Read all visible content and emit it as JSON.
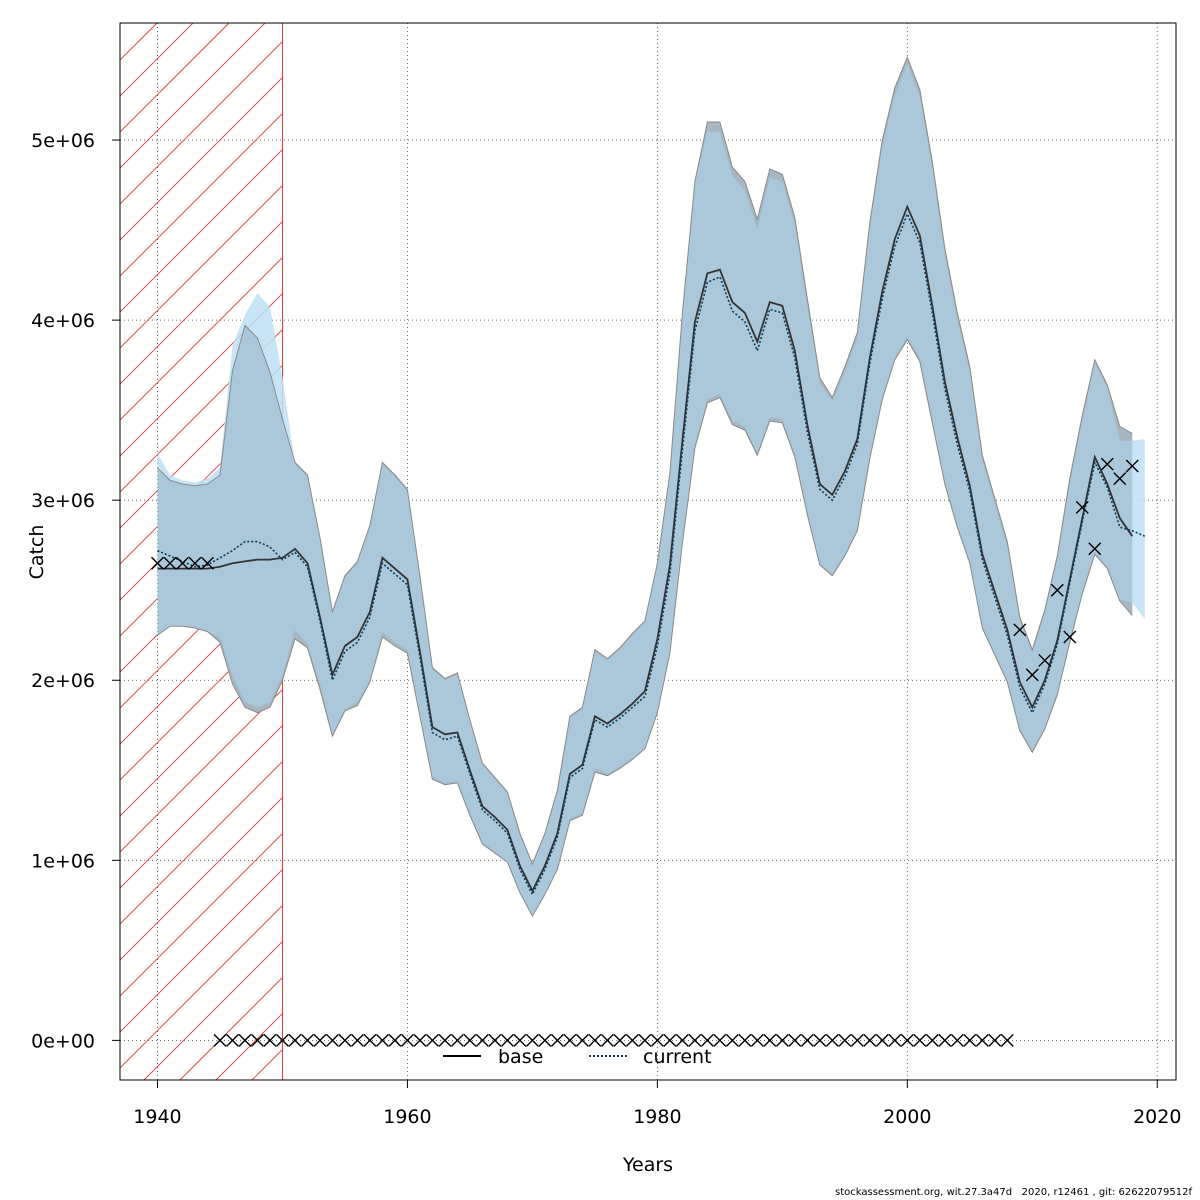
{
  "chart_data": {
    "type": "line",
    "xlabel": "Years",
    "ylabel": "Catch",
    "xlim": [
      1937,
      2021.5
    ],
    "ylim": [
      -220000,
      5650000
    ],
    "x_ticks": [
      1940,
      1960,
      1980,
      2000,
      2020
    ],
    "x_tick_labels": [
      "1940",
      "1960",
      "1980",
      "2000",
      "2020"
    ],
    "y_ticks": [
      0,
      1000000,
      2000000,
      3000000,
      4000000,
      5000000
    ],
    "y_tick_labels": [
      "0e+00",
      "1e+06",
      "2e+06",
      "3e+06",
      "4e+06",
      "5e+06"
    ],
    "grid": true,
    "legend_position": "bottom-center",
    "shaded_region": {
      "x_from": 1937,
      "x_to": 1950,
      "color": "#e53935",
      "pattern": "hatched"
    },
    "colors": {
      "base_band": "#b3b3b3",
      "current_band": "#bde0f5",
      "base_line": "#000000",
      "current_line": "#0b3d5c",
      "observed": "#000000"
    },
    "series": [
      {
        "name": "base",
        "style": "solid",
        "x": [
          1940,
          1941,
          1942,
          1943,
          1944,
          1945,
          1946,
          1947,
          1948,
          1949,
          1950,
          1951,
          1952,
          1953,
          1954,
          1955,
          1956,
          1957,
          1958,
          1959,
          1960,
          1961,
          1962,
          1963,
          1964,
          1965,
          1966,
          1967,
          1968,
          1969,
          1970,
          1971,
          1972,
          1973,
          1974,
          1975,
          1976,
          1977,
          1978,
          1979,
          1980,
          1981,
          1982,
          1983,
          1984,
          1985,
          1986,
          1987,
          1988,
          1989,
          1990,
          1991,
          1992,
          1993,
          1994,
          1995,
          1996,
          1997,
          1998,
          1999,
          2000,
          2001,
          2002,
          2003,
          2004,
          2005,
          2006,
          2007,
          2008,
          2009,
          2010,
          2011,
          2012,
          2013,
          2014,
          2015,
          2016,
          2017,
          2018
        ],
        "values": [
          2620000,
          2620000,
          2620000,
          2620000,
          2620000,
          2630000,
          2650000,
          2660000,
          2670000,
          2670000,
          2680000,
          2730000,
          2650000,
          2350000,
          2030000,
          2190000,
          2240000,
          2380000,
          2680000,
          2620000,
          2560000,
          2160000,
          1740000,
          1700000,
          1710000,
          1500000,
          1300000,
          1240000,
          1170000,
          970000,
          830000,
          970000,
          1150000,
          1480000,
          1530000,
          1800000,
          1760000,
          1810000,
          1870000,
          1940000,
          2230000,
          2640000,
          3330000,
          3990000,
          4260000,
          4280000,
          4100000,
          4040000,
          3880000,
          4100000,
          4080000,
          3830000,
          3420000,
          3090000,
          3030000,
          3160000,
          3340000,
          3790000,
          4160000,
          4450000,
          4630000,
          4470000,
          4080000,
          3660000,
          3350000,
          3080000,
          2700000,
          2490000,
          2280000,
          1990000,
          1850000,
          2000000,
          2220000,
          2560000,
          2900000,
          3240000,
          3090000,
          2900000,
          2800000
        ],
        "lower": [
          2250000,
          2300000,
          2300000,
          2290000,
          2270000,
          2210000,
          1980000,
          1850000,
          1820000,
          1850000,
          2000000,
          2230000,
          2180000,
          1950000,
          1690000,
          1830000,
          1860000,
          1990000,
          2240000,
          2190000,
          2150000,
          1800000,
          1450000,
          1420000,
          1430000,
          1250000,
          1090000,
          1040000,
          990000,
          820000,
          690000,
          810000,
          950000,
          1220000,
          1250000,
          1490000,
          1470000,
          1510000,
          1560000,
          1620000,
          1820000,
          2150000,
          2760000,
          3290000,
          3540000,
          3570000,
          3420000,
          3390000,
          3250000,
          3440000,
          3430000,
          3240000,
          2920000,
          2640000,
          2580000,
          2690000,
          2830000,
          3230000,
          3560000,
          3780000,
          3890000,
          3770000,
          3430000,
          3090000,
          2850000,
          2650000,
          2290000,
          2140000,
          1990000,
          1720000,
          1600000,
          1730000,
          1920000,
          2210000,
          2480000,
          2700000,
          2620000,
          2440000,
          2360000
        ],
        "upper": [
          3180000,
          3110000,
          3090000,
          3080000,
          3090000,
          3140000,
          3720000,
          3970000,
          3900000,
          3710000,
          3450000,
          3210000,
          3140000,
          2790000,
          2380000,
          2580000,
          2660000,
          2860000,
          3210000,
          3140000,
          3060000,
          2580000,
          2070000,
          2010000,
          2040000,
          1780000,
          1540000,
          1460000,
          1380000,
          1150000,
          980000,
          1150000,
          1390000,
          1800000,
          1850000,
          2170000,
          2120000,
          2180000,
          2260000,
          2330000,
          2650000,
          3150000,
          4040000,
          4770000,
          5100000,
          5100000,
          4850000,
          4770000,
          4560000,
          4840000,
          4810000,
          4570000,
          4120000,
          3680000,
          3570000,
          3740000,
          3930000,
          4540000,
          5000000,
          5290000,
          5460000,
          5280000,
          4880000,
          4400000,
          4040000,
          3740000,
          3250000,
          3010000,
          2770000,
          2350000,
          2170000,
          2390000,
          2690000,
          3120000,
          3470000,
          3780000,
          3640000,
          3410000,
          3370000
        ]
      },
      {
        "name": "current",
        "style": "dotted",
        "x": [
          1940,
          1941,
          1942,
          1943,
          1944,
          1945,
          1946,
          1947,
          1948,
          1949,
          1950,
          1951,
          1952,
          1953,
          1954,
          1955,
          1956,
          1957,
          1958,
          1959,
          1960,
          1961,
          1962,
          1963,
          1964,
          1965,
          1966,
          1967,
          1968,
          1969,
          1970,
          1971,
          1972,
          1973,
          1974,
          1975,
          1976,
          1977,
          1978,
          1979,
          1980,
          1981,
          1982,
          1983,
          1984,
          1985,
          1986,
          1987,
          1988,
          1989,
          1990,
          1991,
          1992,
          1993,
          1994,
          1995,
          1996,
          1997,
          1998,
          1999,
          2000,
          2001,
          2002,
          2003,
          2004,
          2005,
          2006,
          2007,
          2008,
          2009,
          2010,
          2011,
          2012,
          2013,
          2014,
          2015,
          2016,
          2017,
          2018,
          2019
        ],
        "values": [
          2720000,
          2690000,
          2660000,
          2630000,
          2640000,
          2680000,
          2720000,
          2770000,
          2770000,
          2740000,
          2670000,
          2710000,
          2630000,
          2330000,
          2000000,
          2160000,
          2210000,
          2350000,
          2650000,
          2590000,
          2530000,
          2130000,
          1710000,
          1670000,
          1690000,
          1480000,
          1280000,
          1220000,
          1150000,
          950000,
          810000,
          950000,
          1130000,
          1460000,
          1510000,
          1780000,
          1740000,
          1790000,
          1850000,
          1910000,
          2190000,
          2590000,
          3280000,
          3940000,
          4210000,
          4240000,
          4050000,
          3990000,
          3830000,
          4060000,
          4040000,
          3790000,
          3380000,
          3060000,
          3000000,
          3130000,
          3310000,
          3760000,
          4120000,
          4410000,
          4590000,
          4430000,
          4040000,
          3620000,
          3310000,
          3050000,
          2670000,
          2460000,
          2250000,
          1960000,
          1820000,
          1980000,
          2200000,
          2540000,
          2880000,
          3210000,
          3070000,
          2850000,
          2830000,
          2800000
        ],
        "lower": [
          2250000,
          2300000,
          2300000,
          2290000,
          2270000,
          2240000,
          2030000,
          1880000,
          1850000,
          1880000,
          2030000,
          2280000,
          2200000,
          1980000,
          1700000,
          1840000,
          1880000,
          2000000,
          2270000,
          2210000,
          2170000,
          1810000,
          1460000,
          1430000,
          1440000,
          1260000,
          1100000,
          1050000,
          990000,
          820000,
          690000,
          810000,
          950000,
          1230000,
          1260000,
          1510000,
          1480000,
          1520000,
          1570000,
          1620000,
          1830000,
          2160000,
          2770000,
          3310000,
          3560000,
          3590000,
          3440000,
          3410000,
          3260000,
          3460000,
          3450000,
          3260000,
          2940000,
          2650000,
          2590000,
          2700000,
          2840000,
          3250000,
          3570000,
          3790000,
          3910000,
          3790000,
          3450000,
          3100000,
          2860000,
          2660000,
          2300000,
          2150000,
          2000000,
          1730000,
          1610000,
          1740000,
          1930000,
          2220000,
          2490000,
          2710000,
          2630000,
          2450000,
          2430000,
          2340000
        ],
        "upper": [
          3260000,
          3140000,
          3110000,
          3100000,
          3120000,
          3180000,
          3860000,
          4030000,
          4150000,
          4070000,
          3680000,
          3200000,
          3130000,
          2780000,
          2370000,
          2570000,
          2650000,
          2850000,
          3200000,
          3130000,
          3050000,
          2570000,
          2060000,
          2000000,
          2030000,
          1770000,
          1530000,
          1450000,
          1370000,
          1140000,
          970000,
          1140000,
          1380000,
          1790000,
          1840000,
          2160000,
          2110000,
          2170000,
          2250000,
          2320000,
          2640000,
          3140000,
          4030000,
          4760000,
          5050000,
          5040000,
          4800000,
          4720000,
          4510000,
          4790000,
          4770000,
          4530000,
          4080000,
          3650000,
          3550000,
          3710000,
          3900000,
          4510000,
          4960000,
          5250000,
          5420000,
          5240000,
          4840000,
          4360000,
          4000000,
          3710000,
          3220000,
          2980000,
          2740000,
          2330000,
          2150000,
          2370000,
          2670000,
          3090000,
          3440000,
          3760000,
          3620000,
          3330000,
          3330000,
          3340000
        ]
      },
      {
        "name": "observed",
        "style": "x-marker",
        "x": [
          1940,
          1941,
          1942,
          1943,
          1944,
          1945,
          1946,
          1947,
          1948,
          1949,
          1950,
          1951,
          1952,
          1953,
          1954,
          1955,
          1956,
          1957,
          1958,
          1959,
          1960,
          1961,
          1962,
          1963,
          1964,
          1965,
          1966,
          1967,
          1968,
          1969,
          1970,
          1971,
          1972,
          1973,
          1974,
          1975,
          1976,
          1977,
          1978,
          1979,
          1980,
          1981,
          1982,
          1983,
          1984,
          1985,
          1986,
          1987,
          1988,
          1989,
          1990,
          1991,
          1992,
          1993,
          1994,
          1995,
          1996,
          1997,
          1998,
          1999,
          2000,
          2001,
          2002,
          2003,
          2004,
          2005,
          2006,
          2007,
          2008,
          2009,
          2010,
          2011,
          2012,
          2013,
          2014,
          2015,
          2016,
          2017,
          2018
        ],
        "values": [
          2650000,
          2650000,
          2650000,
          2650000,
          2650000,
          0,
          0,
          0,
          0,
          0,
          0,
          0,
          0,
          0,
          0,
          0,
          0,
          0,
          0,
          0,
          0,
          0,
          0,
          0,
          0,
          0,
          0,
          0,
          0,
          0,
          0,
          0,
          0,
          0,
          0,
          0,
          0,
          0,
          0,
          0,
          0,
          0,
          0,
          0,
          0,
          0,
          0,
          0,
          0,
          0,
          0,
          0,
          0,
          0,
          0,
          0,
          0,
          0,
          0,
          0,
          0,
          0,
          0,
          0,
          0,
          0,
          0,
          0,
          0,
          2280000,
          2030000,
          2110000,
          2500000,
          2240000,
          2960000,
          2730000,
          3200000,
          3120000,
          3190000
        ]
      }
    ]
  },
  "legend": {
    "base_label": "base",
    "current_label": "current"
  },
  "footer": {
    "text": "stockassessment.org, wit.27.3a47d   2020, r12461 , git: 62622079512f"
  }
}
